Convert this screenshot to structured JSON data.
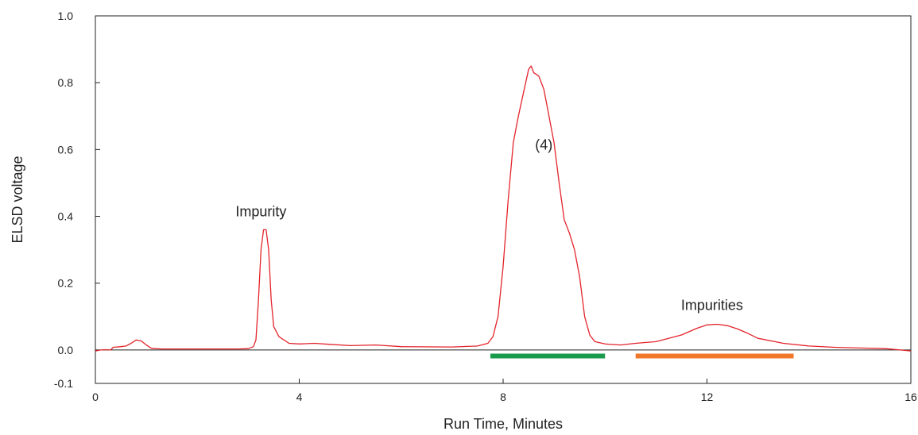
{
  "chart_data": {
    "type": "line",
    "title": "",
    "xlabel": "Run Time, Minutes",
    "ylabel": "ELSD voltage",
    "xlim": [
      0,
      16
    ],
    "ylim": [
      -0.1,
      1.0
    ],
    "grid": false,
    "x_ticks": [
      {
        "value": 0,
        "label": "0"
      },
      {
        "value": 4,
        "label": "4"
      },
      {
        "value": 8,
        "label": "8"
      },
      {
        "value": 12,
        "label": "12"
      },
      {
        "value": 16,
        "label": "16"
      }
    ],
    "y_ticks": [
      {
        "value": -0.1,
        "label": "-0.1"
      },
      {
        "value": 0.0,
        "label": "0.0"
      },
      {
        "value": 0.2,
        "label": "0.2"
      },
      {
        "value": 0.4,
        "label": "0.4"
      },
      {
        "value": 0.6,
        "label": "0.6"
      },
      {
        "value": 0.8,
        "label": "0.8"
      },
      {
        "value": 1.0,
        "label": "1.0"
      }
    ],
    "zero_line": 0.0,
    "series": [
      {
        "color": "#e3242b",
        "points": [
          [
            0.0,
            -0.003
          ],
          [
            0.1,
            0.0
          ],
          [
            0.2,
            0.001
          ],
          [
            0.3,
            0.0
          ],
          [
            0.35,
            0.008
          ],
          [
            0.5,
            0.01
          ],
          [
            0.6,
            0.012
          ],
          [
            0.7,
            0.02
          ],
          [
            0.8,
            0.03
          ],
          [
            0.9,
            0.027
          ],
          [
            1.0,
            0.015
          ],
          [
            1.1,
            0.005
          ],
          [
            1.3,
            0.003
          ],
          [
            2.0,
            0.003
          ],
          [
            2.8,
            0.003
          ],
          [
            3.0,
            0.004
          ],
          [
            3.1,
            0.01
          ],
          [
            3.15,
            0.03
          ],
          [
            3.2,
            0.15
          ],
          [
            3.25,
            0.3
          ],
          [
            3.3,
            0.36
          ],
          [
            3.35,
            0.36
          ],
          [
            3.4,
            0.3
          ],
          [
            3.45,
            0.15
          ],
          [
            3.5,
            0.07
          ],
          [
            3.6,
            0.04
          ],
          [
            3.8,
            0.02
          ],
          [
            4.0,
            0.018
          ],
          [
            4.3,
            0.02
          ],
          [
            4.6,
            0.017
          ],
          [
            5.0,
            0.013
          ],
          [
            5.5,
            0.015
          ],
          [
            6.0,
            0.01
          ],
          [
            7.0,
            0.009
          ],
          [
            7.5,
            0.012
          ],
          [
            7.7,
            0.02
          ],
          [
            7.8,
            0.04
          ],
          [
            7.9,
            0.1
          ],
          [
            8.0,
            0.25
          ],
          [
            8.1,
            0.45
          ],
          [
            8.2,
            0.62
          ],
          [
            8.3,
            0.7
          ],
          [
            8.4,
            0.77
          ],
          [
            8.5,
            0.84
          ],
          [
            8.55,
            0.85
          ],
          [
            8.6,
            0.83
          ],
          [
            8.7,
            0.82
          ],
          [
            8.8,
            0.78
          ],
          [
            8.9,
            0.7
          ],
          [
            9.0,
            0.62
          ],
          [
            9.1,
            0.5
          ],
          [
            9.2,
            0.39
          ],
          [
            9.3,
            0.35
          ],
          [
            9.4,
            0.3
          ],
          [
            9.5,
            0.22
          ],
          [
            9.6,
            0.1
          ],
          [
            9.7,
            0.045
          ],
          [
            9.8,
            0.025
          ],
          [
            10.0,
            0.018
          ],
          [
            10.3,
            0.015
          ],
          [
            10.6,
            0.02
          ],
          [
            11.0,
            0.025
          ],
          [
            11.5,
            0.045
          ],
          [
            11.8,
            0.065
          ],
          [
            12.0,
            0.075
          ],
          [
            12.2,
            0.077
          ],
          [
            12.4,
            0.073
          ],
          [
            12.6,
            0.063
          ],
          [
            12.8,
            0.05
          ],
          [
            13.0,
            0.035
          ],
          [
            13.5,
            0.02
          ],
          [
            14.0,
            0.012
          ],
          [
            14.5,
            0.008
          ],
          [
            15.0,
            0.006
          ],
          [
            15.5,
            0.004
          ],
          [
            15.8,
            0.0
          ],
          [
            16.0,
            -0.003
          ]
        ]
      }
    ],
    "annotations": [
      {
        "text": "Impurity",
        "x": 3.25,
        "y": 0.4
      },
      {
        "text": "(4)",
        "x": 8.8,
        "y": 0.6
      },
      {
        "text": "Impurities",
        "x": 12.1,
        "y": 0.12
      }
    ],
    "fraction_bars": [
      {
        "x_start": 7.75,
        "x_end": 10.0,
        "y": -0.018,
        "color": "#1a9a4b"
      },
      {
        "x_start": 10.6,
        "x_end": 13.7,
        "y": -0.018,
        "color": "#f0782a"
      }
    ],
    "axis_colors": {
      "ylabel": "#e3242b",
      "frame": "#222222"
    }
  }
}
